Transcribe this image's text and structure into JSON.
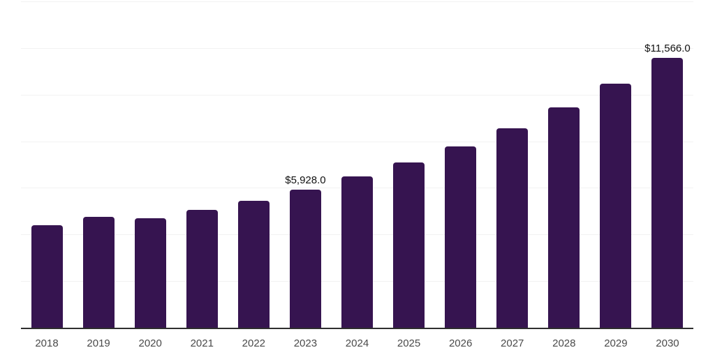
{
  "chart_data": {
    "type": "bar",
    "title": "",
    "xlabel": "",
    "ylabel": "",
    "categories": [
      "2018",
      "2019",
      "2020",
      "2021",
      "2022",
      "2023",
      "2024",
      "2025",
      "2026",
      "2027",
      "2028",
      "2029",
      "2030"
    ],
    "values": [
      4410,
      4760,
      4700,
      5060,
      5440,
      5928.0,
      6490,
      7090,
      7780,
      8550,
      9450,
      10470,
      11566.0
    ],
    "data_labels": [
      {
        "category": "2023",
        "text": "$5,928.0"
      },
      {
        "category": "2030",
        "text": "$11,566.0"
      }
    ],
    "ylim": [
      0,
      14000
    ],
    "gridline_step": 2000,
    "grid": true,
    "legend": false,
    "bar_color": "#361450",
    "axis_line_color": "#2e2e2e",
    "gridline_color": "#f2f2f2",
    "tick_label_color": "#4a4a4a",
    "value_label_color": "#111111"
  }
}
